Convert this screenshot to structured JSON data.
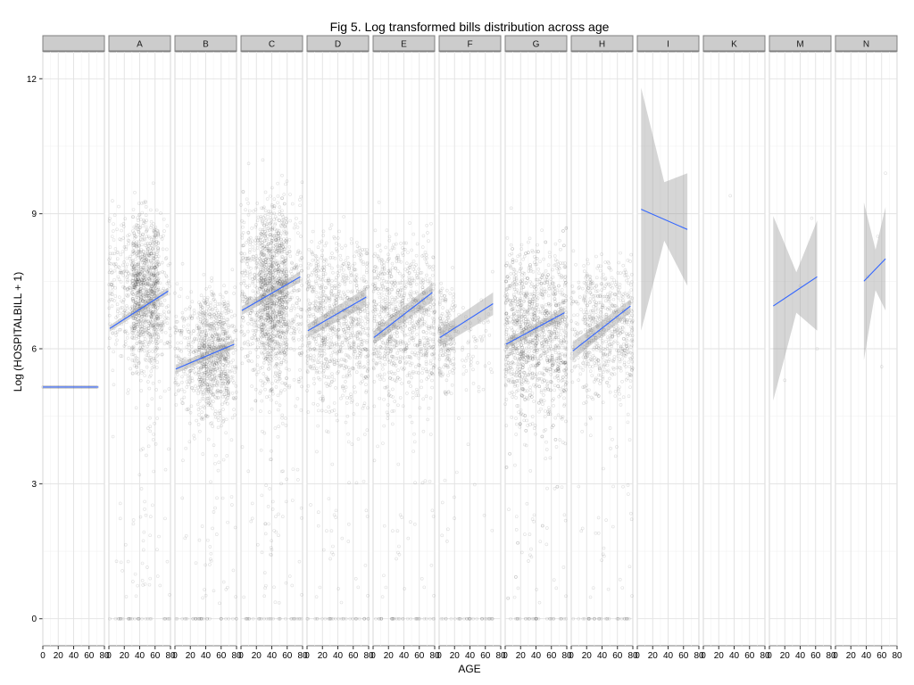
{
  "chart_data": {
    "type": "scatter",
    "title": "Fig 5. Log transformed bills distribution across age",
    "xlabel": "AGE",
    "ylabel": "Log (HOSPITALBILL + 1)",
    "xlim": [
      0,
      80
    ],
    "ylim": [
      -0.6,
      12.6
    ],
    "x_ticks": [
      0,
      20,
      40,
      60,
      80
    ],
    "y_ticks": [
      0,
      3,
      6,
      9,
      12
    ],
    "grid": true,
    "colors": {
      "points": "#000000",
      "fit_line": "#3366ff",
      "band": "#999999",
      "strip": "#cccccc"
    },
    "facets": [
      {
        "label": "",
        "points_type": "flat",
        "flat_y": 5.15,
        "fit": {
          "x": [
            0,
            72
          ],
          "y": [
            5.15,
            5.15
          ]
        },
        "band": null
      },
      {
        "label": "A",
        "points_type": "dense",
        "center_y": 7.3,
        "spread": 1.4,
        "n": 1300,
        "x_range": [
          0,
          80
        ],
        "dense_x": [
          30,
          65
        ],
        "fit": {
          "x": [
            1,
            77
          ],
          "y": [
            6.45,
            7.28
          ]
        },
        "band": {
          "x": [
            1,
            77
          ],
          "lower": [
            6.38,
            7.2
          ],
          "upper": [
            6.52,
            7.36
          ]
        }
      },
      {
        "label": "B",
        "points_type": "dense",
        "center_y": 5.9,
        "spread": 1.2,
        "n": 1000,
        "x_range": [
          0,
          80
        ],
        "dense_x": [
          30,
          70
        ],
        "fit": {
          "x": [
            1,
            77
          ],
          "y": [
            5.55,
            6.1
          ]
        },
        "band": {
          "x": [
            1,
            77
          ],
          "lower": [
            5.45,
            6.0
          ],
          "upper": [
            5.65,
            6.2
          ]
        }
      },
      {
        "label": "C",
        "points_type": "dense",
        "center_y": 7.3,
        "spread": 1.7,
        "n": 1600,
        "x_range": [
          0,
          80
        ],
        "dense_x": [
          25,
          60
        ],
        "fit": {
          "x": [
            1,
            77
          ],
          "y": [
            6.85,
            7.6
          ]
        },
        "band": {
          "x": [
            1,
            77
          ],
          "lower": [
            6.75,
            7.48
          ],
          "upper": [
            6.95,
            7.72
          ]
        }
      },
      {
        "label": "D",
        "points_type": "dense",
        "center_y": 6.7,
        "spread": 1.6,
        "n": 900,
        "x_range": [
          0,
          80
        ],
        "dense_x": [
          0,
          80
        ],
        "fit": {
          "x": [
            1,
            77
          ],
          "y": [
            6.4,
            7.15
          ]
        },
        "band": {
          "x": [
            1,
            77
          ],
          "lower": [
            6.25,
            6.95
          ],
          "upper": [
            6.55,
            7.35
          ]
        }
      },
      {
        "label": "E",
        "points_type": "dense",
        "center_y": 6.7,
        "spread": 1.5,
        "n": 900,
        "x_range": [
          0,
          80
        ],
        "dense_x": [
          0,
          80
        ],
        "fit": {
          "x": [
            1,
            77
          ],
          "y": [
            6.25,
            7.25
          ]
        },
        "band": {
          "x": [
            1,
            77
          ],
          "lower": [
            6.1,
            7.05
          ],
          "upper": [
            6.4,
            7.45
          ]
        }
      },
      {
        "label": "F",
        "points_type": "dense",
        "center_y": 6.3,
        "spread": 1.0,
        "n": 250,
        "x_range": [
          0,
          70
        ],
        "dense_x": [
          0,
          20
        ],
        "fit": {
          "x": [
            1,
            70
          ],
          "y": [
            6.25,
            7.0
          ]
        },
        "band": {
          "x": [
            1,
            70
          ],
          "lower": [
            6.05,
            6.75
          ],
          "upper": [
            6.45,
            7.25
          ]
        }
      },
      {
        "label": "G",
        "points_type": "dense",
        "center_y": 6.4,
        "spread": 1.6,
        "n": 1300,
        "x_range": [
          0,
          80
        ],
        "dense_x": [
          0,
          80
        ],
        "fit": {
          "x": [
            1,
            77
          ],
          "y": [
            6.1,
            6.8
          ]
        },
        "band": {
          "x": [
            1,
            77
          ],
          "lower": [
            6.0,
            6.68
          ],
          "upper": [
            6.2,
            6.92
          ]
        }
      },
      {
        "label": "H",
        "points_type": "dense",
        "center_y": 6.5,
        "spread": 1.3,
        "n": 700,
        "x_range": [
          0,
          80
        ],
        "dense_x": [
          15,
          80
        ],
        "fit": {
          "x": [
            2,
            77
          ],
          "y": [
            5.95,
            6.95
          ]
        },
        "band": {
          "x": [
            2,
            77
          ],
          "lower": [
            5.75,
            6.8
          ],
          "upper": [
            6.15,
            7.1
          ]
        }
      },
      {
        "label": "I",
        "points_type": "none",
        "n": 0,
        "fit": {
          "x": [
            5,
            65
          ],
          "y": [
            9.1,
            8.65
          ]
        },
        "band": {
          "x": [
            5,
            35,
            65
          ],
          "lower": [
            6.4,
            8.4,
            7.4
          ],
          "upper": [
            11.8,
            9.7,
            9.9
          ]
        }
      },
      {
        "label": "K",
        "points_type": "single",
        "single": [
          [
            35,
            9.4
          ]
        ],
        "fit": null,
        "band": null
      },
      {
        "label": "M",
        "points_type": "sparse",
        "single": [
          [
            55,
            8.9
          ],
          [
            40,
            7.4
          ],
          [
            62,
            6.0
          ],
          [
            20,
            5.3
          ]
        ],
        "fit": {
          "x": [
            5,
            62
          ],
          "y": [
            6.95,
            7.6
          ]
        },
        "band": {
          "x": [
            5,
            35,
            62
          ],
          "lower": [
            4.85,
            6.8,
            6.4
          ],
          "upper": [
            8.95,
            7.7,
            8.85
          ]
        }
      },
      {
        "label": "N",
        "points_type": "sparse",
        "single": [
          [
            65,
            9.9
          ],
          [
            55,
            8.5
          ],
          [
            60,
            5.6
          ],
          [
            42,
            7.6
          ]
        ],
        "fit": {
          "x": [
            37,
            65
          ],
          "y": [
            7.5,
            8.0
          ]
        },
        "band": {
          "x": [
            37,
            52,
            65
          ],
          "lower": [
            5.75,
            7.3,
            6.85
          ],
          "upper": [
            9.25,
            8.2,
            9.15
          ]
        }
      }
    ]
  }
}
